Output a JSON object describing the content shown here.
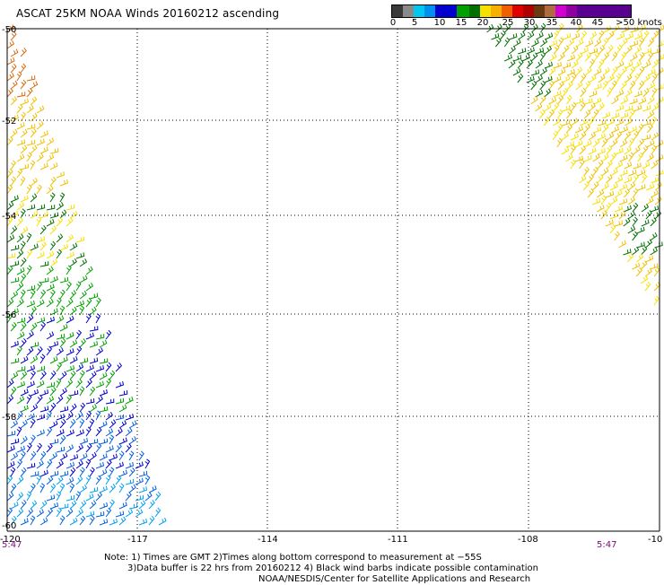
{
  "title": "ASCAT 25KM NOAA Winds 20160212 ascending",
  "colorbar": {
    "colors": [
      "#3a3a3a",
      "#8a8a8a",
      "#00c8f0",
      "#0090f0",
      "#0000d0",
      "#00a000",
      "#007000",
      "#f8e000",
      "#f8b000",
      "#f06000",
      "#e00000",
      "#b00000",
      "#6a3a10",
      "#b06a40",
      "#d000d0",
      "#9000a0",
      "#5a0090"
    ],
    "labels": [
      "0",
      "5",
      "10",
      "15",
      "20",
      "25",
      "30",
      "35",
      "40",
      "45",
      ">50 knots"
    ]
  },
  "axes": {
    "lat_labels": [
      "-50",
      "-52",
      "-54",
      "-56",
      "-58",
      "-60"
    ],
    "lon_labels": [
      "-120",
      "-117",
      "-114",
      "-111",
      "-108",
      "-10"
    ]
  },
  "times": {
    "left": "5:47",
    "right": "5:47"
  },
  "notes": {
    "line1": "Note: 1) Times are GMT 2)Times along bottom correspond to measurement at −55S",
    "line2": "3)Data buffer is 22 hrs from 20160212 4) Black wind barbs indicate possible contamination",
    "line3": "NOAA/NESDIS/Center for Satellite Applications and Research"
  }
}
